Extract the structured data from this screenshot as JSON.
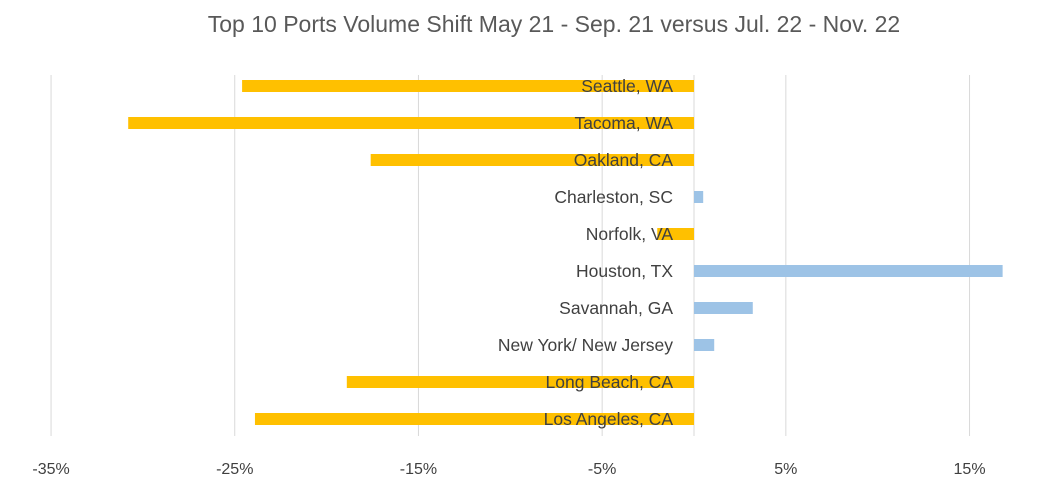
{
  "chart_data": {
    "type": "bar",
    "orientation": "horizontal",
    "title": "Top 10 Ports Volume Shift May 21 - Sep. 21 versus Jul. 22 - Nov. 22",
    "xlabel": "",
    "ylabel": "",
    "categories": [
      "Seattle, WA",
      "Tacoma, WA",
      "Oakland, CA",
      "Charleston, SC",
      "Norfolk, VA",
      "Houston, TX",
      "Savannah, GA",
      "New York/ New Jersey",
      "Long Beach, CA",
      "Los Angeles, CA"
    ],
    "values": [
      -24.6,
      -30.8,
      -17.6,
      0.5,
      -2.0,
      16.8,
      3.2,
      1.1,
      -18.9,
      -23.9
    ],
    "value_unit": "%",
    "xlim": [
      -35,
      18
    ],
    "x_ticks": [
      -35,
      -25,
      -15,
      -5,
      5,
      15
    ],
    "x_tick_labels": [
      "-35%",
      "-25%",
      "-15%",
      "-5%",
      "5%",
      "15%"
    ],
    "grid": "vertical",
    "legend": "none",
    "colors": {
      "negative": "#FFC000",
      "positive": "#9DC3E6",
      "grid": "#D9D9D9"
    }
  }
}
